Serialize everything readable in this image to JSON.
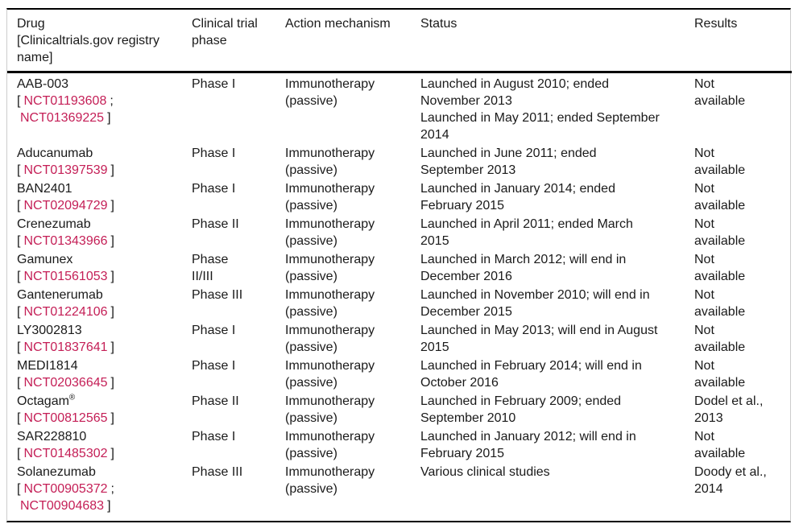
{
  "meta": {
    "text_color": "#1a1a1a",
    "link_color": "#C41E56",
    "rule_color": "#000000",
    "side_rule_color": "#cccccc",
    "background_color": "#ffffff"
  },
  "punct": {
    "open": "[",
    "close": "]",
    "semi": ";"
  },
  "table": {
    "headers": {
      "drug_line1": "Drug",
      "drug_line2": "[Clinicaltrials.gov registry name]",
      "phase": "Clinical trial phase",
      "mechanism": "Action mechanism",
      "status": "Status",
      "results": "Results"
    },
    "rows": [
      {
        "drug": "AAB-003",
        "registry": [
          "NCT01193608",
          "NCT01369225"
        ],
        "phase_lines": [
          "Phase I"
        ],
        "mechanism": "Immunotherapy (passive)",
        "status_lines": [
          "Launched in August 2010; ended November 2013",
          "Launched in May 2011; ended September 2014"
        ],
        "results": "Not available"
      },
      {
        "drug": "Aducanumab",
        "registry": [
          "NCT01397539"
        ],
        "phase_lines": [
          "Phase I"
        ],
        "mechanism": "Immunotherapy (passive)",
        "status_lines": [
          "Launched in June 2011; ended September 2013"
        ],
        "results": "Not available"
      },
      {
        "drug": "BAN2401",
        "registry": [
          "NCT02094729"
        ],
        "phase_lines": [
          "Phase I"
        ],
        "mechanism": "Immunotherapy (passive)",
        "status_lines": [
          "Launched in January 2014; ended February 2015"
        ],
        "results": "Not available"
      },
      {
        "drug": "Crenezumab",
        "registry": [
          "NCT01343966"
        ],
        "phase_lines": [
          "Phase II"
        ],
        "mechanism": "Immunotherapy (passive)",
        "status_lines": [
          "Launched in April 2011; ended March 2015"
        ],
        "results": "Not available"
      },
      {
        "drug": "Gamunex",
        "registry": [
          "NCT01561053"
        ],
        "phase_lines": [
          "Phase",
          "II/III"
        ],
        "mechanism": "Immunotherapy (passive)",
        "status_lines": [
          "Launched in March 2012; will end in December 2016"
        ],
        "results": "Not available"
      },
      {
        "drug": "Gantenerumab",
        "registry": [
          "NCT01224106"
        ],
        "phase_lines": [
          "Phase III"
        ],
        "mechanism": "Immunotherapy (passive)",
        "status_lines": [
          "Launched in November 2010; will end in December 2015"
        ],
        "results": "Not available"
      },
      {
        "drug": "LY3002813",
        "registry": [
          "NCT01837641"
        ],
        "phase_lines": [
          "Phase I"
        ],
        "mechanism": "Immunotherapy (passive)",
        "status_lines": [
          "Launched in May 2013; will end in August 2015"
        ],
        "results": "Not available"
      },
      {
        "drug": "MEDI1814",
        "registry": [
          "NCT02036645"
        ],
        "phase_lines": [
          "Phase I"
        ],
        "mechanism": "Immunotherapy (passive)",
        "status_lines": [
          "Launched in February 2014; will end in October 2016"
        ],
        "results": "Not available"
      },
      {
        "drug": "Octagam",
        "drug_mark": "®",
        "registry": [
          "NCT00812565"
        ],
        "phase_lines": [
          "Phase II"
        ],
        "mechanism": "Immunotherapy (passive)",
        "status_lines": [
          "Launched in February 2009; ended September 2010"
        ],
        "results": "Dodel et al., 2013"
      },
      {
        "drug": "SAR228810",
        "registry": [
          "NCT01485302"
        ],
        "phase_lines": [
          "Phase I"
        ],
        "mechanism": "Immunotherapy (passive)",
        "status_lines": [
          "Launched in January 2012; will end in February 2015"
        ],
        "results": "Not available"
      },
      {
        "drug": "Solanezumab",
        "registry": [
          "NCT00905372",
          "NCT00904683"
        ],
        "phase_lines": [
          "Phase III"
        ],
        "mechanism": "Immunotherapy (passive)",
        "status_lines": [
          "Various clinical studies"
        ],
        "results": "Doody et al., 2014"
      }
    ]
  }
}
